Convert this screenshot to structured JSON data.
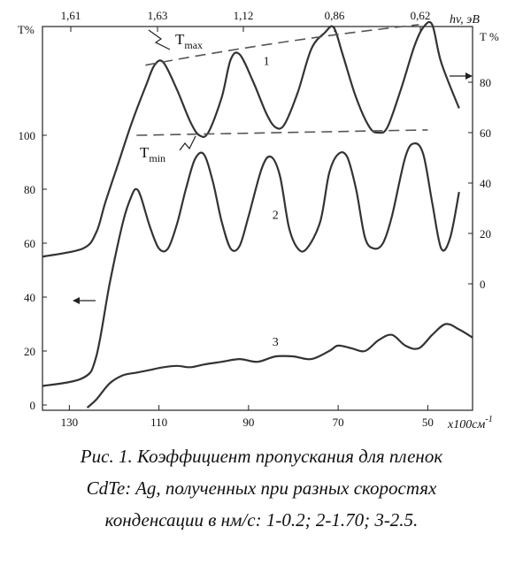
{
  "chart_data": {
    "type": "line",
    "x_bottom": {
      "ticks": [
        130,
        110,
        90,
        70,
        50
      ],
      "tick_labels": [
        "130",
        "110",
        "90",
        "70",
        "50"
      ],
      "label": "x100см",
      "label_sup": "-1",
      "range": [
        136,
        40
      ]
    },
    "x_top": {
      "tick_labels": [
        "1,61",
        "1,63",
        "1,12",
        "0,86",
        "0,62"
      ],
      "label": "hv, эВ"
    },
    "y_left": {
      "label": "T%",
      "ticks": [
        0,
        20,
        40,
        60,
        80,
        100
      ],
      "tick_labels": [
        "0",
        "20",
        "40",
        "60",
        "80",
        "100"
      ]
    },
    "y_right": {
      "label": "T %",
      "ticks": [
        0,
        20,
        40,
        60,
        80
      ],
      "tick_labels": [
        "0",
        "20",
        "40",
        "60",
        "80"
      ]
    },
    "series": [
      {
        "name": "1",
        "x": [
          136,
          127,
          124,
          122,
          119,
          116,
          113,
          111,
          109,
          106,
          103,
          101,
          99,
          96,
          94,
          92,
          89,
          86,
          84,
          82,
          79,
          76,
          73,
          71,
          69,
          66,
          63,
          61,
          59,
          56,
          53,
          51,
          49,
          47,
          43
        ],
        "y": [
          55,
          58,
          64,
          75,
          90,
          105,
          118,
          126,
          127,
          117,
          105,
          100,
          101,
          114,
          128,
          130,
          120,
          108,
          103,
          104,
          116,
          132,
          138,
          140,
          130,
          114,
          103,
          101,
          103,
          117,
          133,
          140,
          141,
          127,
          110
        ]
      },
      {
        "name": "2",
        "x": [
          136,
          127,
          124,
          121,
          118,
          116,
          115,
          114,
          112,
          110,
          108,
          106,
          104,
          102,
          100,
          98,
          96,
          94,
          92,
          90,
          87,
          85,
          83,
          81,
          79,
          77,
          74,
          72,
          70,
          68,
          66,
          64,
          62,
          60,
          58,
          55,
          53,
          51,
          49,
          47,
          45,
          43
        ],
        "y": [
          7,
          10,
          18,
          45,
          68,
          78,
          80,
          77,
          66,
          58,
          58,
          67,
          80,
          91,
          93,
          83,
          68,
          58,
          59,
          70,
          88,
          92,
          85,
          66,
          58,
          58,
          68,
          86,
          93,
          92,
          80,
          62,
          58,
          60,
          70,
          92,
          97,
          93,
          75,
          58,
          62,
          79
        ]
      },
      {
        "name": "3",
        "x": [
          126,
          124,
          121,
          118,
          115,
          112,
          109,
          106,
          103,
          100,
          96,
          92,
          88,
          84,
          80,
          76,
          72,
          70,
          67,
          64,
          61,
          58,
          55,
          52,
          49,
          46,
          43,
          40
        ],
        "y": [
          -1,
          2,
          8,
          11,
          12,
          13,
          14,
          14.5,
          14,
          15,
          16,
          17,
          16,
          18,
          18,
          17,
          20,
          22,
          21,
          20,
          24,
          26,
          22,
          21,
          26,
          30,
          28,
          25
        ]
      }
    ],
    "envelopes": [
      {
        "name": "Tmax",
        "label_main": "T",
        "label_sub": "max",
        "x": [
          113,
          52
        ],
        "y": [
          126,
          141
        ]
      },
      {
        "name": "Tmin",
        "label_main": "T",
        "label_sub": "min",
        "x": [
          115,
          50
        ],
        "y": [
          100,
          102
        ]
      }
    ],
    "curve_labels": [
      {
        "text": "1",
        "x": 86,
        "y": 126
      },
      {
        "text": "2",
        "x": 84,
        "y": 69
      },
      {
        "text": "3",
        "x": 84,
        "y": 22
      }
    ],
    "grid": false,
    "title": ""
  },
  "caption": {
    "line1": "Рис. 1. Коэффициент пропускания для пленок",
    "line2": "CdTe: Ag, полученных при разных скоростях",
    "line3": "конденсации в нм/с: 1-0.2; 2-1.70; 3-2.5."
  }
}
